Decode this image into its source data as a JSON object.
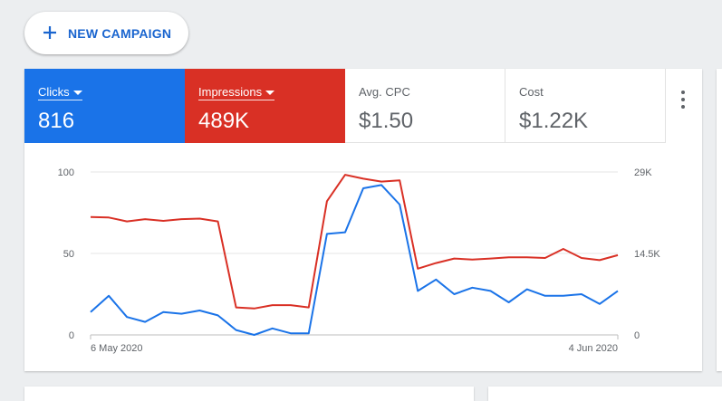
{
  "toolbar": {
    "new_campaign_label": "NEW CAMPAIGN"
  },
  "metrics": [
    {
      "label": "Clicks",
      "value": "816",
      "color": "#1a73e8",
      "selected": true
    },
    {
      "label": "Impressions",
      "value": "489K",
      "color": "#d93025",
      "selected": true
    },
    {
      "label": "Avg. CPC",
      "value": "$1.50",
      "selected": false
    },
    {
      "label": "Cost",
      "value": "$1.22K",
      "selected": false
    }
  ],
  "chart_data": {
    "type": "line",
    "x_start_label": "6 May 2020",
    "x_end_label": "4 Jun 2020",
    "x": [
      "6 May 2020",
      "7 May 2020",
      "8 May 2020",
      "9 May 2020",
      "10 May 2020",
      "11 May 2020",
      "12 May 2020",
      "13 May 2020",
      "14 May 2020",
      "15 May 2020",
      "16 May 2020",
      "17 May 2020",
      "18 May 2020",
      "19 May 2020",
      "20 May 2020",
      "21 May 2020",
      "22 May 2020",
      "23 May 2020",
      "24 May 2020",
      "25 May 2020",
      "26 May 2020",
      "27 May 2020",
      "28 May 2020",
      "29 May 2020",
      "30 May 2020",
      "31 May 2020",
      "1 Jun 2020",
      "2 Jun 2020",
      "3 Jun 2020",
      "4 Jun 2020"
    ],
    "left_axis": {
      "ticks": [
        "0",
        "50",
        "100"
      ],
      "range": [
        0,
        100
      ]
    },
    "right_axis": {
      "ticks": [
        "0",
        "14.5K",
        "29K"
      ],
      "range": [
        0,
        29000
      ]
    },
    "series": [
      {
        "name": "Clicks",
        "axis": "left",
        "color": "#1a73e8",
        "values": [
          14,
          24,
          11,
          8,
          14,
          13,
          15,
          12,
          3,
          0,
          4,
          1,
          1,
          62,
          63,
          90,
          92,
          80,
          27,
          34,
          25,
          29,
          27,
          20,
          28,
          24,
          24,
          25,
          19,
          27
        ]
      },
      {
        "name": "Impressions",
        "axis": "right",
        "color": "#d93025",
        "values": [
          21000,
          20900,
          20200,
          20600,
          20300,
          20600,
          20700,
          20200,
          4900,
          4700,
          5300,
          5300,
          4900,
          23800,
          28500,
          27800,
          27300,
          27500,
          11800,
          12800,
          13600,
          13400,
          13600,
          13800,
          13800,
          13700,
          15300,
          13700,
          13300,
          14200
        ]
      }
    ],
    "grid": true
  }
}
